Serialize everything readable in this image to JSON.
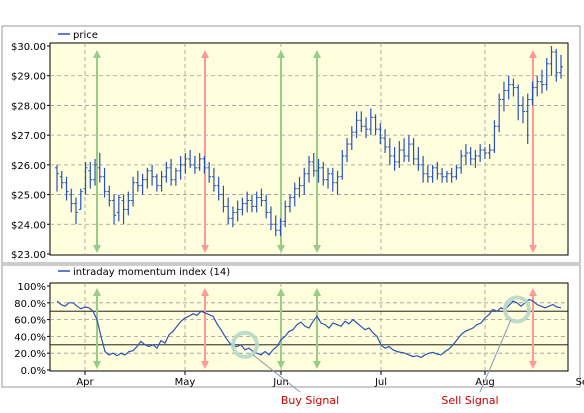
{
  "chart_data": [
    {
      "type": "ohlc",
      "legend": "price",
      "ylim": [
        23,
        30
      ],
      "yticks": [
        "$30.00",
        "$29.00",
        "$28.00",
        "$27.00",
        "$26.00",
        "$25.00",
        "$24.00",
        "$23.00"
      ],
      "series_color": "#2a52be",
      "background": "#ffffdd",
      "grid": true,
      "bars": [
        [
          1,
          25.9,
          26.0,
          25.1,
          25.7
        ],
        [
          2,
          25.6,
          25.8,
          25.2,
          25.4
        ],
        [
          3,
          25.4,
          25.6,
          24.8,
          25.1
        ],
        [
          4,
          25.0,
          25.2,
          24.4,
          24.7
        ],
        [
          5,
          24.7,
          24.9,
          24.0,
          24.4
        ],
        [
          6,
          24.5,
          25.2,
          24.5,
          25.1
        ],
        [
          7,
          25.2,
          26.1,
          25.0,
          25.9
        ],
        [
          8,
          25.8,
          26.1,
          25.2,
          25.5
        ],
        [
          9,
          25.5,
          26.2,
          25.3,
          26.0
        ],
        [
          10,
          25.9,
          26.4,
          25.4,
          25.6
        ],
        [
          11,
          25.6,
          25.9,
          24.9,
          25.1
        ],
        [
          12,
          25.1,
          25.3,
          24.6,
          24.8
        ],
        [
          13,
          24.8,
          25.0,
          24.0,
          24.3
        ],
        [
          14,
          24.4,
          25.0,
          24.1,
          24.9
        ],
        [
          15,
          24.8,
          25.0,
          24.0,
          24.5
        ],
        [
          16,
          24.5,
          25.1,
          24.3,
          24.8
        ],
        [
          17,
          24.8,
          25.6,
          24.6,
          25.4
        ],
        [
          18,
          25.4,
          25.8,
          25.1,
          25.3
        ],
        [
          19,
          25.3,
          25.7,
          25.0,
          25.5
        ],
        [
          20,
          25.5,
          25.9,
          25.2,
          25.8
        ],
        [
          21,
          25.8,
          26.0,
          25.3,
          25.6
        ],
        [
          22,
          25.6,
          25.7,
          25.1,
          25.3
        ],
        [
          23,
          25.3,
          25.8,
          25.1,
          25.6
        ],
        [
          24,
          25.6,
          26.1,
          25.4,
          25.9
        ],
        [
          25,
          25.9,
          26.2,
          25.3,
          25.5
        ],
        [
          26,
          25.5,
          25.9,
          25.3,
          25.8
        ],
        [
          27,
          25.8,
          26.3,
          25.5,
          26.0
        ],
        [
          28,
          26.0,
          26.4,
          25.7,
          26.2
        ],
        [
          29,
          26.2,
          26.5,
          25.9,
          26.0
        ],
        [
          30,
          26.0,
          26.3,
          25.7,
          25.9
        ],
        [
          31,
          25.9,
          26.4,
          25.8,
          26.2
        ],
        [
          32,
          26.2,
          26.3,
          25.7,
          25.9
        ],
        [
          33,
          25.9,
          26.1,
          25.4,
          25.6
        ],
        [
          34,
          25.6,
          25.9,
          25.1,
          25.3
        ],
        [
          35,
          25.3,
          25.6,
          24.8,
          25.0
        ],
        [
          36,
          25.0,
          25.3,
          24.4,
          24.6
        ],
        [
          37,
          24.6,
          24.9,
          24.0,
          24.2
        ],
        [
          38,
          24.2,
          24.6,
          23.9,
          24.4
        ],
        [
          39,
          24.4,
          24.8,
          24.1,
          24.5
        ],
        [
          40,
          24.5,
          24.9,
          24.3,
          24.7
        ],
        [
          41,
          24.7,
          25.1,
          24.4,
          24.8
        ],
        [
          42,
          24.8,
          25.0,
          24.4,
          24.6
        ],
        [
          43,
          24.6,
          25.1,
          24.4,
          24.9
        ],
        [
          44,
          24.9,
          25.2,
          24.6,
          24.8
        ],
        [
          45,
          24.8,
          25.0,
          24.2,
          24.4
        ],
        [
          46,
          24.4,
          24.6,
          23.8,
          24.0
        ],
        [
          47,
          24.0,
          24.3,
          23.6,
          23.8
        ],
        [
          48,
          23.8,
          24.2,
          23.6,
          24.1
        ],
        [
          49,
          24.1,
          24.8,
          23.9,
          24.6
        ],
        [
          50,
          24.6,
          25.0,
          24.4,
          24.9
        ],
        [
          51,
          24.9,
          25.4,
          24.6,
          25.2
        ],
        [
          52,
          25.2,
          25.6,
          24.9,
          25.3
        ],
        [
          53,
          25.3,
          25.9,
          25.0,
          25.7
        ],
        [
          54,
          25.7,
          26.3,
          25.4,
          26.1
        ],
        [
          55,
          26.1,
          26.4,
          25.6,
          25.8
        ],
        [
          56,
          25.8,
          26.2,
          25.4,
          25.9
        ],
        [
          57,
          25.9,
          26.1,
          25.3,
          25.5
        ],
        [
          58,
          25.5,
          25.9,
          25.2,
          25.7
        ],
        [
          59,
          25.7,
          25.9,
          25.1,
          25.4
        ],
        [
          60,
          25.4,
          25.8,
          25.0,
          25.6
        ],
        [
          61,
          25.6,
          26.5,
          25.5,
          26.3
        ],
        [
          62,
          26.3,
          26.9,
          26.1,
          26.7
        ],
        [
          63,
          26.7,
          27.3,
          26.5,
          27.1
        ],
        [
          64,
          27.1,
          27.8,
          26.9,
          27.5
        ],
        [
          65,
          27.5,
          27.8,
          27.1,
          27.3
        ],
        [
          66,
          27.3,
          27.6,
          26.9,
          27.2
        ],
        [
          67,
          27.2,
          27.9,
          27.0,
          27.6
        ],
        [
          68,
          27.6,
          27.7,
          27.0,
          27.2
        ],
        [
          69,
          27.2,
          27.4,
          26.7,
          26.9
        ],
        [
          70,
          26.9,
          27.2,
          26.4,
          26.6
        ],
        [
          71,
          26.6,
          26.9,
          26.0,
          26.3
        ],
        [
          72,
          26.3,
          26.6,
          25.8,
          26.1
        ],
        [
          73,
          26.1,
          26.8,
          25.9,
          26.5
        ],
        [
          74,
          26.5,
          26.9,
          26.1,
          26.3
        ],
        [
          75,
          26.3,
          27.0,
          26.1,
          26.7
        ],
        [
          76,
          26.7,
          26.9,
          26.0,
          26.2
        ],
        [
          77,
          26.2,
          26.6,
          25.8,
          26.0
        ],
        [
          78,
          26.0,
          26.3,
          25.4,
          25.7
        ],
        [
          79,
          25.7,
          26.0,
          25.4,
          25.6
        ],
        [
          80,
          25.6,
          26.0,
          25.4,
          25.9
        ],
        [
          81,
          25.9,
          26.1,
          25.5,
          25.7
        ],
        [
          82,
          25.7,
          25.9,
          25.4,
          25.6
        ],
        [
          83,
          25.6,
          25.8,
          25.4,
          25.7
        ],
        [
          84,
          25.7,
          25.9,
          25.4,
          25.6
        ],
        [
          85,
          25.6,
          26.0,
          25.5,
          25.9
        ],
        [
          86,
          25.9,
          26.5,
          25.7,
          26.3
        ],
        [
          87,
          26.3,
          26.7,
          26.0,
          26.4
        ],
        [
          88,
          26.4,
          26.6,
          26.0,
          26.2
        ],
        [
          89,
          26.2,
          26.5,
          25.9,
          26.3
        ],
        [
          90,
          26.3,
          26.7,
          26.1,
          26.5
        ],
        [
          91,
          26.5,
          26.6,
          26.2,
          26.4
        ],
        [
          92,
          26.4,
          26.7,
          26.2,
          26.5
        ],
        [
          93,
          26.5,
          27.5,
          26.4,
          27.3
        ],
        [
          94,
          27.3,
          28.4,
          27.1,
          28.2
        ],
        [
          95,
          28.2,
          28.8,
          27.8,
          28.5
        ],
        [
          96,
          28.5,
          29.0,
          28.2,
          28.7
        ],
        [
          97,
          28.7,
          28.9,
          28.3,
          28.6
        ],
        [
          98,
          28.6,
          28.7,
          27.5,
          28.0
        ],
        [
          99,
          28.0,
          28.3,
          27.4,
          27.8
        ],
        [
          100,
          27.8,
          28.4,
          26.7,
          28.2
        ],
        [
          101,
          28.2,
          28.8,
          28.0,
          28.6
        ],
        [
          102,
          28.6,
          29.0,
          28.3,
          28.8
        ],
        [
          103,
          28.8,
          29.2,
          28.4,
          28.7
        ],
        [
          104,
          28.7,
          29.6,
          28.5,
          29.4
        ],
        [
          105,
          29.4,
          30.0,
          29.0,
          29.8
        ],
        [
          106,
          29.8,
          29.9,
          28.8,
          29.1
        ],
        [
          107,
          29.1,
          29.7,
          28.9,
          29.3
        ]
      ]
    },
    {
      "type": "line",
      "legend": "intraday momentum index (14)",
      "ylim": [
        0,
        100
      ],
      "yticks": [
        "100%",
        "80.0%",
        "60.0%",
        "40.0%",
        "20.0%",
        "0.0%"
      ],
      "series_color": "#2a52be",
      "background": "#ffffdd",
      "threshold_lines": [
        70,
        30
      ],
      "x_tick_labels": [
        "Apr",
        "May",
        "Jun",
        "Jul",
        "Aug",
        "Sep"
      ],
      "values": [
        [
          1,
          82
        ],
        [
          2,
          78
        ],
        [
          3,
          76
        ],
        [
          4,
          80
        ],
        [
          5,
          80
        ],
        [
          6,
          76
        ],
        [
          7,
          73
        ],
        [
          8,
          75
        ],
        [
          9,
          74
        ],
        [
          10,
          70
        ],
        [
          11,
          60
        ],
        [
          12,
          40
        ],
        [
          13,
          22
        ],
        [
          14,
          18
        ],
        [
          15,
          20
        ],
        [
          16,
          17
        ],
        [
          17,
          20
        ],
        [
          18,
          18
        ],
        [
          19,
          22
        ],
        [
          20,
          23
        ],
        [
          21,
          28
        ],
        [
          22,
          34
        ],
        [
          23,
          30
        ],
        [
          24,
          28
        ],
        [
          25,
          30
        ],
        [
          26,
          26
        ],
        [
          27,
          35
        ],
        [
          28,
          32
        ],
        [
          29,
          42
        ],
        [
          30,
          46
        ],
        [
          31,
          52
        ],
        [
          32,
          58
        ],
        [
          33,
          62
        ],
        [
          34,
          64
        ],
        [
          35,
          67
        ],
        [
          36,
          65
        ],
        [
          37,
          70
        ],
        [
          38,
          68
        ],
        [
          39,
          66
        ],
        [
          40,
          64
        ],
        [
          41,
          55
        ],
        [
          42,
          48
        ],
        [
          43,
          40
        ],
        [
          44,
          33
        ],
        [
          45,
          28
        ],
        [
          46,
          28
        ],
        [
          47,
          30
        ],
        [
          48,
          24
        ],
        [
          49,
          26
        ],
        [
          50,
          22
        ],
        [
          51,
          20
        ],
        [
          52,
          18
        ],
        [
          53,
          22
        ],
        [
          54,
          18
        ],
        [
          55,
          24
        ],
        [
          56,
          28
        ],
        [
          57,
          36
        ],
        [
          58,
          40
        ],
        [
          59,
          46
        ],
        [
          60,
          48
        ],
        [
          61,
          54
        ],
        [
          62,
          57
        ],
        [
          63,
          52
        ],
        [
          64,
          50
        ],
        [
          65,
          58
        ],
        [
          66,
          64
        ],
        [
          67,
          56
        ],
        [
          68,
          54
        ],
        [
          69,
          50
        ],
        [
          70,
          56
        ],
        [
          71,
          54
        ],
        [
          72,
          52
        ],
        [
          73,
          58
        ],
        [
          74,
          55
        ],
        [
          75,
          60
        ],
        [
          76,
          56
        ],
        [
          77,
          52
        ],
        [
          78,
          48
        ],
        [
          79,
          50
        ],
        [
          80,
          44
        ],
        [
          81,
          40
        ],
        [
          82,
          30
        ],
        [
          83,
          26
        ],
        [
          84,
          28
        ],
        [
          85,
          24
        ],
        [
          86,
          22
        ],
        [
          87,
          21
        ],
        [
          88,
          20
        ],
        [
          89,
          18
        ],
        [
          90,
          16
        ],
        [
          91,
          17
        ],
        [
          92,
          15
        ],
        [
          93,
          18
        ],
        [
          94,
          20
        ],
        [
          95,
          21
        ],
        [
          96,
          19
        ],
        [
          97,
          18
        ],
        [
          98,
          22
        ],
        [
          99,
          25
        ],
        [
          100,
          30
        ],
        [
          101,
          36
        ],
        [
          102,
          42
        ],
        [
          103,
          46
        ],
        [
          104,
          48
        ],
        [
          105,
          50
        ],
        [
          106,
          54
        ],
        [
          107,
          56
        ],
        [
          108,
          62
        ],
        [
          109,
          66
        ],
        [
          110,
          72
        ],
        [
          111,
          70
        ],
        [
          112,
          74
        ],
        [
          113,
          72
        ],
        [
          114,
          77
        ],
        [
          115,
          82
        ],
        [
          116,
          80
        ],
        [
          117,
          76
        ],
        [
          118,
          80
        ],
        [
          119,
          84
        ],
        [
          120,
          82
        ],
        [
          121,
          78
        ],
        [
          122,
          76
        ],
        [
          123,
          74
        ],
        [
          124,
          76
        ],
        [
          125,
          78
        ],
        [
          126,
          75
        ],
        [
          127,
          74
        ]
      ]
    }
  ],
  "signals": {
    "buy_x": [
      1,
      35,
      39
    ],
    "sell_x": [
      14,
      92
    ],
    "buy_color": "#99cc88",
    "sell_color": "#ff9999"
  },
  "annotations": [
    {
      "label": "Buy Signal",
      "target_x": 45,
      "target_y": 30
    },
    {
      "label": "Sell Signal",
      "target_x": 108,
      "target_y": 70
    }
  ],
  "colors": {
    "plot_bg": "#ffffdd",
    "frame": "#000000",
    "grid": "#999999",
    "price": "#2a52be",
    "annot": "#cc0000"
  }
}
